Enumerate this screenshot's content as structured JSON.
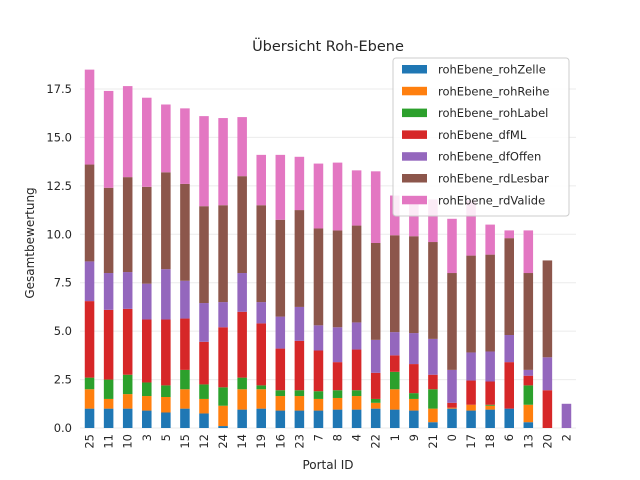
{
  "chart_data": {
    "type": "bar",
    "stacked": true,
    "title": "Übersicht Roh-Ebene",
    "xlabel": "Portal ID",
    "ylabel": "Gesamtbewertung",
    "ylim": [
      0,
      19.1
    ],
    "yticks": [
      0.0,
      2.5,
      5.0,
      7.5,
      10.0,
      12.5,
      15.0,
      17.5
    ],
    "ytick_labels": [
      "0.0",
      "2.5",
      "5.0",
      "7.5",
      "10.0",
      "12.5",
      "15.0",
      "17.5"
    ],
    "grid": true,
    "legend_position": "top-right",
    "categories": [
      "25",
      "11",
      "10",
      "3",
      "5",
      "15",
      "12",
      "24",
      "14",
      "19",
      "16",
      "23",
      "7",
      "8",
      "4",
      "22",
      "1",
      "9",
      "21",
      "0",
      "17",
      "18",
      "6",
      "13",
      "20",
      "2"
    ],
    "series": [
      {
        "name": "rohEbene_rohZelle",
        "color": "#1f77b4",
        "values": [
          1.0,
          1.0,
          1.0,
          0.9,
          0.8,
          1.0,
          0.75,
          0.1,
          0.95,
          1.0,
          0.9,
          0.9,
          0.9,
          0.95,
          0.95,
          1.0,
          0.95,
          0.9,
          0.3,
          1.0,
          0.9,
          0.95,
          1.0,
          0.3,
          0,
          0
        ]
      },
      {
        "name": "rohEbene_rohReihe",
        "color": "#ff7f0e",
        "values": [
          1.0,
          0.5,
          0.75,
          0.75,
          0.8,
          1.0,
          0.75,
          1.05,
          1.05,
          1.0,
          0.75,
          0.75,
          0.6,
          0.6,
          0.7,
          0.3,
          1.05,
          0.6,
          0.7,
          0.05,
          0.3,
          0.2,
          0,
          0.9,
          0,
          0
        ]
      },
      {
        "name": "rohEbene_rohLabel",
        "color": "#2ca02c",
        "values": [
          0.6,
          1.0,
          1.0,
          0.7,
          0.6,
          1.0,
          0.75,
          0.95,
          0.6,
          0.2,
          0.3,
          0.3,
          0.4,
          0.4,
          0.3,
          0.2,
          0.9,
          0.3,
          1.0,
          0,
          0,
          0.05,
          0,
          1.0,
          0,
          0
        ]
      },
      {
        "name": "rohEbene_dfML",
        "color": "#d62728",
        "values": [
          3.95,
          3.6,
          3.4,
          3.25,
          3.4,
          2.65,
          2.2,
          3.1,
          3.4,
          3.2,
          2.15,
          2.55,
          2.1,
          1.45,
          2.1,
          1.35,
          0.85,
          1.5,
          0.75,
          0.25,
          1.25,
          1.2,
          2.4,
          0.5,
          1.95,
          0
        ]
      },
      {
        "name": "rohEbene_dfOffen",
        "color": "#9467bd",
        "values": [
          2.05,
          1.9,
          1.9,
          1.85,
          2.6,
          1.95,
          2.0,
          1.3,
          2.0,
          1.1,
          1.65,
          1.75,
          1.3,
          1.8,
          1.4,
          1.7,
          1.2,
          1.6,
          1.85,
          1.7,
          1.45,
          1.55,
          1.4,
          0.3,
          1.7,
          1.25
        ]
      },
      {
        "name": "rohEbene_rdLesbar",
        "color": "#8c564b",
        "values": [
          5.0,
          4.4,
          4.9,
          5.0,
          5.0,
          5.0,
          5.0,
          5.0,
          5.0,
          5.0,
          5.0,
          5.0,
          5.0,
          5.0,
          5.0,
          5.0,
          5.0,
          5.0,
          5.0,
          5.0,
          5.0,
          5.0,
          5.0,
          5.0,
          5.0,
          0
        ]
      },
      {
        "name": "rohEbene_rdValide",
        "color": "#e377c2",
        "values": [
          4.9,
          5.0,
          4.7,
          4.6,
          3.5,
          3.9,
          4.65,
          4.5,
          3.05,
          2.6,
          3.35,
          2.75,
          3.35,
          3.5,
          2.85,
          3.7,
          2.05,
          2.0,
          2.2,
          2.8,
          2.85,
          1.55,
          0.4,
          2.2,
          0,
          0
        ]
      }
    ]
  }
}
